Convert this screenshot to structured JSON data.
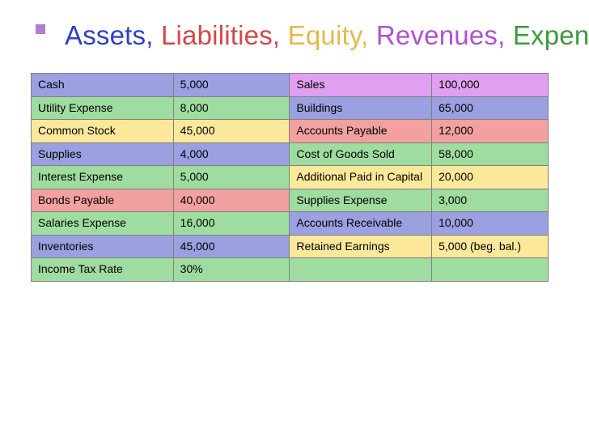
{
  "accent_square_color": "#b07fd1",
  "title_parts": [
    {
      "text": "Assets,",
      "color": "#2e3ed1"
    },
    {
      "text": " Liabilities,",
      "color": "#d94545"
    },
    {
      "text": " Equity,",
      "color": "#e6b84a"
    },
    {
      "text": " Revenues,",
      "color": "#b24fd6"
    },
    {
      "text": " Expenses",
      "color": "#3c9a3c"
    }
  ],
  "colors": {
    "blue": "#9aa0e0",
    "green": "#9fdc9f",
    "yellow": "#fbe89a",
    "red": "#f2a0a0",
    "purple": "#e0a0ef",
    "border": "#808080"
  },
  "rows": [
    {
      "c0": "Cash",
      "v0": "5,000",
      "c1": "Sales",
      "v1": "100,000",
      "bg": [
        "blue",
        "blue",
        "purple",
        "purple"
      ]
    },
    {
      "c0": "Utility Expense",
      "v0": "8,000",
      "c1": "Buildings",
      "v1": "65,000",
      "bg": [
        "green",
        "green",
        "blue",
        "blue"
      ]
    },
    {
      "c0": "Common Stock",
      "v0": "45,000",
      "c1": "Accounts Payable",
      "v1": "12,000",
      "bg": [
        "yellow",
        "yellow",
        "red",
        "red"
      ]
    },
    {
      "c0": "Supplies",
      "v0": "4,000",
      "c1": "Cost of Goods Sold",
      "v1": "58,000",
      "bg": [
        "blue",
        "blue",
        "green",
        "green"
      ]
    },
    {
      "c0": "Interest Expense",
      "v0": "5,000",
      "c1": "Additional Paid in Capital",
      "v1": "20,000",
      "bg": [
        "green",
        "green",
        "yellow",
        "yellow"
      ]
    },
    {
      "c0": "Bonds Payable",
      "v0": "40,000",
      "c1": "Supplies Expense",
      "v1": "3,000",
      "bg": [
        "red",
        "red",
        "green",
        "green"
      ]
    },
    {
      "c0": "Salaries Expense",
      "v0": "16,000",
      "c1": "Accounts Receivable",
      "v1": "10,000",
      "bg": [
        "green",
        "green",
        "blue",
        "blue"
      ]
    },
    {
      "c0": "Inventories",
      "v0": "45,000",
      "c1": "Retained Earnings",
      "v1": "5,000 (beg. bal.)",
      "bg": [
        "blue",
        "blue",
        "yellow",
        "yellow"
      ]
    },
    {
      "c0": "Income Tax Rate",
      "v0": "30%",
      "c1": "",
      "v1": "",
      "bg": [
        "green",
        "green",
        "green",
        "green"
      ]
    }
  ]
}
